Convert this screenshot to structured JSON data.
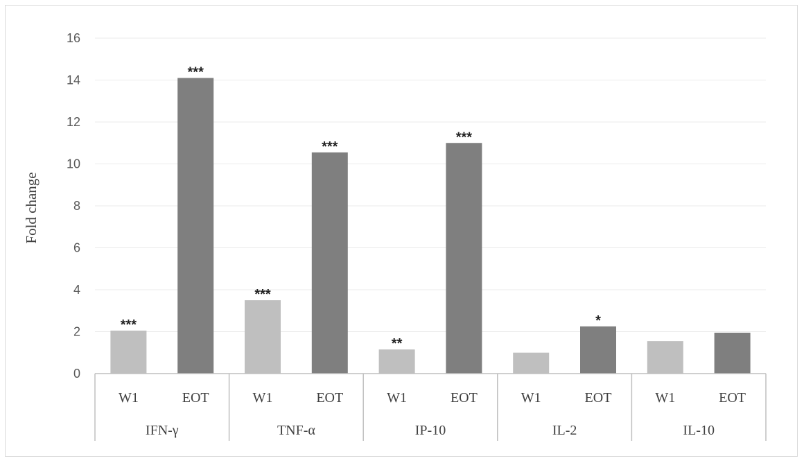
{
  "chart_data": {
    "type": "bar",
    "title": "",
    "xlabel": "",
    "ylabel": "Fold change",
    "ylim": [
      0,
      16
    ],
    "yticks": [
      0,
      2,
      4,
      6,
      8,
      10,
      12,
      14,
      16
    ],
    "grid": true,
    "groups": [
      {
        "name": "IFN-γ",
        "bars": [
          {
            "label": "W1",
            "value": 2.05,
            "annotation": "***"
          },
          {
            "label": "EOT",
            "value": 14.1,
            "annotation": "***"
          }
        ]
      },
      {
        "name": "TNF-α",
        "bars": [
          {
            "label": "W1",
            "value": 3.5,
            "annotation": "***"
          },
          {
            "label": "EOT",
            "value": 10.55,
            "annotation": "***"
          }
        ]
      },
      {
        "name": "IP-10",
        "bars": [
          {
            "label": "W1",
            "value": 1.15,
            "annotation": "**"
          },
          {
            "label": "EOT",
            "value": 11.0,
            "annotation": "***"
          }
        ]
      },
      {
        "name": "IL-2",
        "bars": [
          {
            "label": "W1",
            "value": 1.0,
            "annotation": ""
          },
          {
            "label": "EOT",
            "value": 2.25,
            "annotation": "*"
          }
        ]
      },
      {
        "name": "IL-10",
        "bars": [
          {
            "label": "W1",
            "value": 1.55,
            "annotation": ""
          },
          {
            "label": "EOT",
            "value": 1.95,
            "annotation": ""
          }
        ]
      }
    ],
    "colors": {
      "W1": "#bfbfbf",
      "EOT": "#7f7f7f"
    }
  }
}
